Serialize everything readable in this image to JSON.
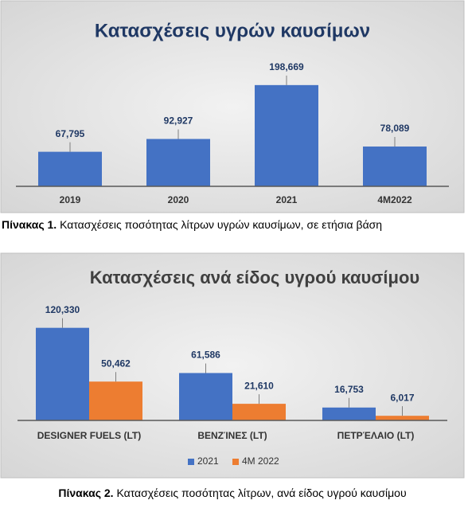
{
  "chart_data": [
    {
      "type": "bar",
      "title": "Κατασχέσεις υγρών καυσίμων",
      "categories": [
        "2019",
        "2020",
        "2021",
        "4M2022"
      ],
      "values": [
        67795,
        92927,
        198669,
        78089
      ],
      "value_labels": [
        "67,795",
        "92,927",
        "198,669",
        "78,089"
      ],
      "color": "#4472c4",
      "ylim": [
        0,
        250000
      ]
    },
    {
      "type": "grouped-bar",
      "title": "Κατασχέσεις ανά είδος υγρού καυσίμου",
      "categories": [
        "DESIGNER FUELS (LT)",
        "ΒΕΝΖΊΝΕΣ (LT)",
        "ΠΕΤΡΈΛΑΙΟ (LT)"
      ],
      "series": [
        {
          "name": "2021",
          "color": "#4472c4",
          "values": [
            120330,
            61586,
            16753
          ],
          "value_labels": [
            "120,330",
            "61,586",
            "16,753"
          ]
        },
        {
          "name": "4M 2022",
          "color": "#ed7d31",
          "values": [
            50462,
            21610,
            6017
          ],
          "value_labels": [
            "50,462",
            "21,610",
            "6,017"
          ]
        }
      ],
      "ylim": [
        0,
        150000
      ],
      "legend": "bottom"
    }
  ],
  "captions": [
    {
      "label": "Πίνακας 1.",
      "text": " Κατασχέσεις ποσότητας λίτρων υγρών καυσίμων, σε ετήσια βάση"
    },
    {
      "label": "Πίνακας 2.",
      "text": " Κατασχέσεις ποσότητας λίτρων, ανά είδος υγρού καυσίμου"
    }
  ]
}
